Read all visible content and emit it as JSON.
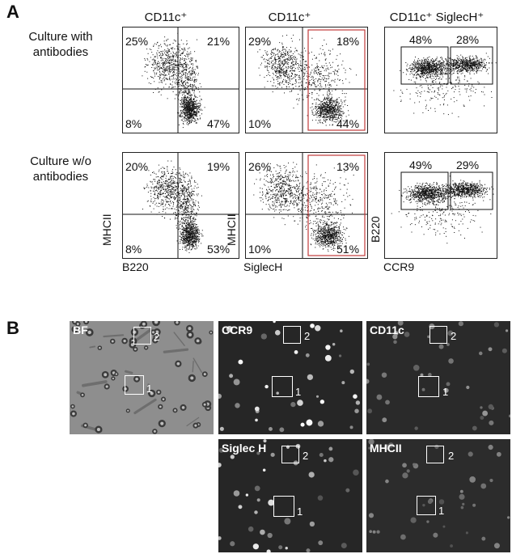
{
  "panels": {
    "a": {
      "letter": "A",
      "column_titles": [
        "CD11c⁺",
        "CD11c⁺",
        "CD11c⁺ SiglecH⁺"
      ],
      "row_labels": [
        "Culture with\nantibodies",
        "Culture w/o\nantibodies"
      ],
      "plots": [
        {
          "quadrants": [
            "25%",
            "21%",
            "8%",
            "47%"
          ]
        },
        {
          "quadrants": [
            "29%",
            "18%",
            "10%",
            "44%"
          ]
        },
        {
          "gates": [
            "48%",
            "28%"
          ]
        },
        {
          "quadrants": [
            "20%",
            "19%",
            "8%",
            "53%"
          ]
        },
        {
          "quadrants": [
            "26%",
            "13%",
            "10%",
            "51%"
          ]
        },
        {
          "gates": [
            "49%",
            "29%"
          ]
        }
      ],
      "axis_labels": {
        "plot4_y": "MHCII",
        "plot4_x": "B220",
        "plot5_y": "MHCII",
        "plot5_x": "SiglecH",
        "plot6_y": "B220",
        "plot6_x": "CCR9"
      }
    },
    "b": {
      "letter": "B",
      "images": [
        {
          "label": "BF",
          "box1": "1",
          "box2": "2"
        },
        {
          "label": "CCR9",
          "box1": "1",
          "box2": "2"
        },
        {
          "label": "CD11c",
          "box1": "1",
          "box2": "2"
        },
        {
          "label": "Siglec H",
          "box1": "1",
          "box2": "2"
        },
        {
          "label": "MHCII",
          "box1": "1",
          "box2": "2"
        }
      ]
    }
  }
}
